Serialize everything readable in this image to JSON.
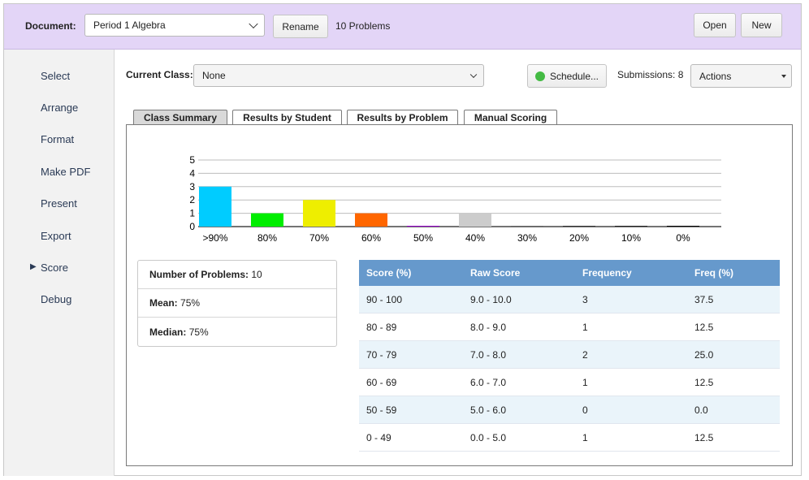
{
  "header": {
    "document_label": "Document:",
    "document_value": "Period 1 Algebra",
    "rename_label": "Rename",
    "problem_count": "10 Problems",
    "open_label": "Open",
    "new_label": "New"
  },
  "sidebar": {
    "items": [
      {
        "label": "Select"
      },
      {
        "label": "Arrange"
      },
      {
        "label": "Format"
      },
      {
        "label": "Make PDF"
      },
      {
        "label": "Present"
      },
      {
        "label": "Export"
      },
      {
        "label": "Score",
        "selected": true
      },
      {
        "label": "Debug"
      }
    ]
  },
  "classbar": {
    "current_class_label": "Current Class:",
    "current_class_value": "None",
    "schedule_label": "Schedule...",
    "schedule_status_color": "#44bb44",
    "submissions_text": "Submissions: 8",
    "actions_label": "Actions"
  },
  "tabs": [
    {
      "label": "Class Summary",
      "active": true
    },
    {
      "label": "Results by Student"
    },
    {
      "label": "Results by Problem"
    },
    {
      "label": "Manual Scoring"
    }
  ],
  "chart_data": {
    "type": "bar",
    "categories": [
      ">90%",
      "80%",
      "70%",
      "60%",
      "50%",
      "40%",
      "30%",
      "20%",
      "10%",
      "0%"
    ],
    "values": [
      3,
      1,
      2,
      1,
      0,
      1,
      0,
      0,
      0,
      0
    ],
    "colors": [
      "#00ccff",
      "#00ee00",
      "#eeee00",
      "#ff6600",
      "#9900cc",
      "#cccccc",
      "#666666",
      "#333333",
      "#222222",
      "#000000"
    ],
    "y_ticks": [
      "0",
      "1",
      "2",
      "3",
      "4",
      "5"
    ],
    "ylim": [
      0,
      5
    ],
    "grid": true
  },
  "stats": {
    "num_problems_label": "Number of Problems:",
    "num_problems_value": "10",
    "mean_label": "Mean:",
    "mean_value": "75%",
    "median_label": "Median:",
    "median_value": "75%"
  },
  "freq_table": {
    "headers": [
      "Score (%)",
      "Raw Score",
      "Frequency",
      "Freq (%)"
    ],
    "rows": [
      [
        "90 - 100",
        "9.0 - 10.0",
        "3",
        "37.5"
      ],
      [
        "80 - 89",
        "8.0 - 9.0",
        "1",
        "12.5"
      ],
      [
        "70 - 79",
        "7.0 - 8.0",
        "2",
        "25.0"
      ],
      [
        "60 - 69",
        "6.0 - 7.0",
        "1",
        "12.5"
      ],
      [
        "50 - 59",
        "5.0 - 6.0",
        "0",
        "0.0"
      ],
      [
        "0 - 49",
        "0.0 - 5.0",
        "1",
        "12.5"
      ]
    ]
  }
}
